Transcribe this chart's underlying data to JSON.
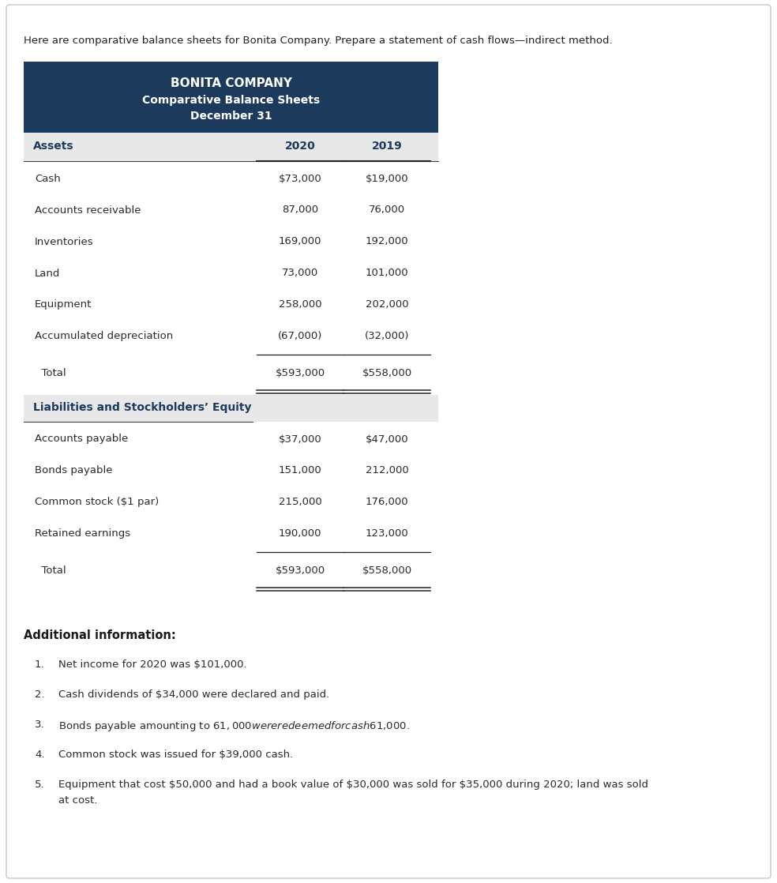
{
  "intro_text": "Here are comparative balance sheets for Bonita Company. Prepare a statement of cash flows—indirect method.",
  "company_name": "BONITA COMPANY",
  "subtitle1": "Comparative Balance Sheets",
  "subtitle2": "December 31",
  "header_bg": "#1b3a5c",
  "header_text_color": "#ffffff",
  "subheader_bg": "#e8e8e8",
  "section_bg": "#e8e8e8",
  "col_header_2020": "2020",
  "col_header_2019": "2019",
  "assets_label": "Assets",
  "asset_rows": [
    [
      "Cash",
      "$73,000",
      "$19,000"
    ],
    [
      "Accounts receivable",
      "87,000",
      "76,000"
    ],
    [
      "Inventories",
      "169,000",
      "192,000"
    ],
    [
      "Land",
      "73,000",
      "101,000"
    ],
    [
      "Equipment",
      "258,000",
      "202,000"
    ],
    [
      "Accumulated depreciation",
      "(67,000)",
      "(32,000)"
    ]
  ],
  "assets_total_row": [
    "  Total",
    "$593,000",
    "$558,000"
  ],
  "liab_label": "Liabilities and Stockholders’ Equity",
  "liab_rows": [
    [
      "Accounts payable",
      "$37,000",
      "$47,000"
    ],
    [
      "Bonds payable",
      "151,000",
      "212,000"
    ],
    [
      "Common stock ($1 par)",
      "215,000",
      "176,000"
    ],
    [
      "Retained earnings",
      "190,000",
      "123,000"
    ]
  ],
  "liab_total_row": [
    "  Total",
    "$593,000",
    "$558,000"
  ],
  "additional_title": "Additional information:",
  "additional_items": [
    "Net income for 2020 was $101,000.",
    "Cash dividends of $34,000 were declared and paid.",
    "Bonds payable amounting to $61,000 were redeemed for cash $61,000.",
    "Common stock was issued for $39,000 cash.",
    "Equipment that cost $50,000 and had a book value of $30,000 was sold for $35,000 during 2020; land was sold\nat cost."
  ],
  "text_color": "#1b3a5c",
  "row_text_color": "#2a2a2a",
  "bg_color": "#ffffff",
  "outer_border_color": "#c8c8c8"
}
